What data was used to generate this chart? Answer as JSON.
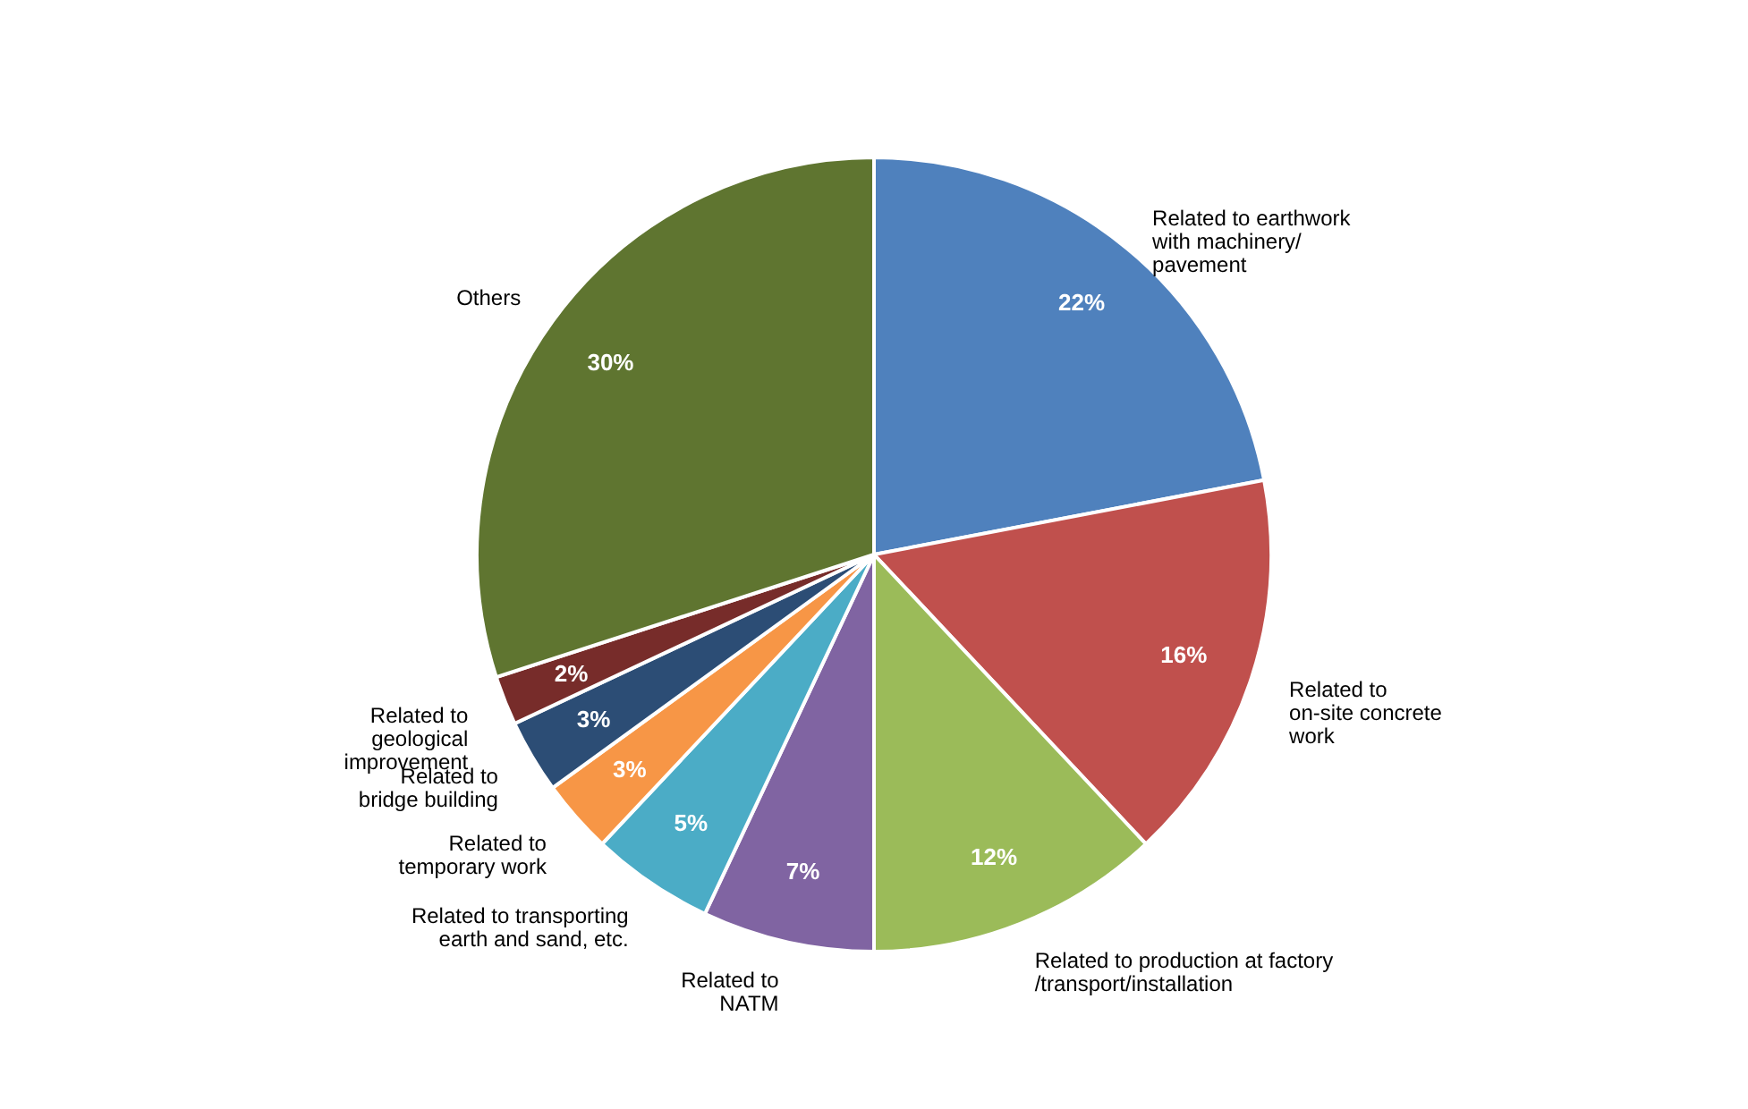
{
  "chart_data": {
    "type": "pie",
    "categories": [
      "Related to earthwork\nwith machinery/\npavement",
      "Related to\non-site concrete\nwork",
      "Related to production at factory\n/transport/installation",
      "Related to\nNATM",
      "Related to transporting\nearth and sand, etc.",
      "Related to\ntemporary work",
      "Related to\nbridge building",
      "Related to\ngeological\nimprovement",
      "Others"
    ],
    "values": [
      22,
      16,
      12,
      7,
      5,
      3,
      3,
      2,
      30
    ],
    "value_labels": [
      "22%",
      "16%",
      "12%",
      "7%",
      "5%",
      "3%",
      "3%",
      "2%",
      "30%"
    ],
    "colors": [
      "#4f81bd",
      "#c0504d",
      "#9bbb59",
      "#8064a2",
      "#4bacc6",
      "#f79646",
      "#2c4d75",
      "#772c2a",
      "#5f7530"
    ],
    "legend": false
  }
}
